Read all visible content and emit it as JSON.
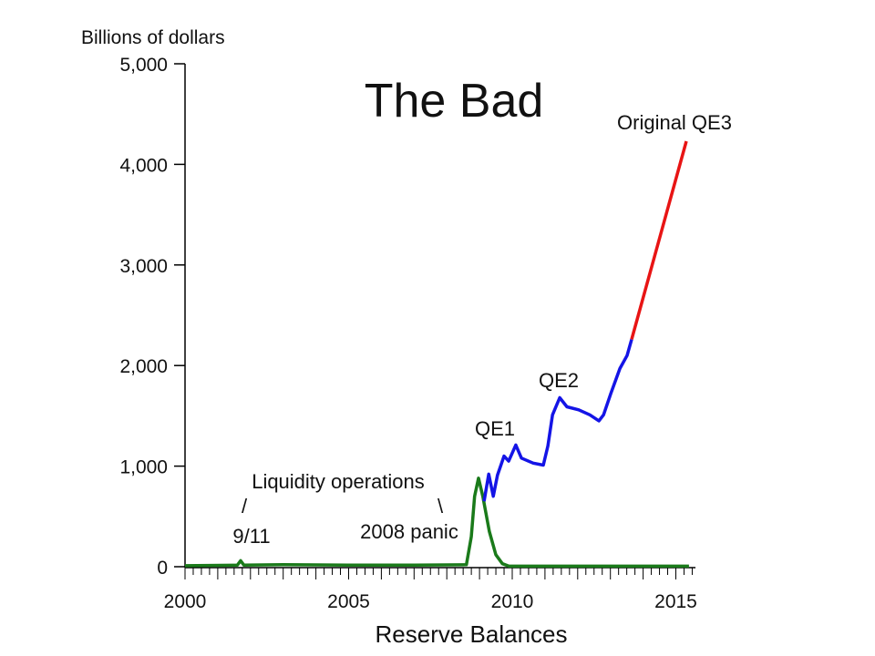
{
  "chart_data": {
    "type": "line",
    "title": "The Bad",
    "ylabel": "Billions of dollars",
    "xlabel": "Reserve Balances",
    "xlim": [
      2000,
      2015.6
    ],
    "ylim": [
      0,
      5000
    ],
    "x_ticks": [
      2000,
      2005,
      2010,
      2015
    ],
    "x_tick_labels": [
      "2000",
      "2005",
      "2010",
      "2015"
    ],
    "y_ticks": [
      0,
      1000,
      2000,
      3000,
      4000,
      5000
    ],
    "y_tick_labels": [
      "0",
      "1,000",
      "2,000",
      "3,000",
      "4,000",
      "5,000"
    ],
    "grid": false,
    "series": [
      {
        "name": "Liquidity operations",
        "color": "#1a7a1a",
        "x": [
          2000,
          2001.6,
          2001.7,
          2001.8,
          2003,
          2005,
          2007,
          2008.6,
          2008.75,
          2008.85,
          2008.97,
          2009.1,
          2009.3,
          2009.5,
          2009.7,
          2009.9,
          2015.4
        ],
        "y": [
          10,
          15,
          60,
          15,
          20,
          15,
          15,
          20,
          300,
          700,
          880,
          700,
          350,
          120,
          30,
          5,
          5
        ]
      },
      {
        "name": "Reserve balances",
        "color": "#1414e6",
        "x": [
          2009.14,
          2009.28,
          2009.42,
          2009.55,
          2009.75,
          2009.89,
          2010.11,
          2010.28,
          2010.64,
          2010.95,
          2011.09,
          2011.23,
          2011.45,
          2011.67,
          2012.03,
          2012.37,
          2012.65,
          2012.79,
          2013.01,
          2013.29,
          2013.51,
          2013.65
        ],
        "y": [
          650,
          920,
          700,
          910,
          1100,
          1050,
          1210,
          1080,
          1030,
          1010,
          1200,
          1510,
          1680,
          1590,
          1560,
          1510,
          1450,
          1510,
          1720,
          1970,
          2100,
          2260
        ]
      },
      {
        "name": "Original QE3",
        "color": "#e81414",
        "x": [
          2013.65,
          2015.32
        ],
        "y": [
          2260,
          4230
        ]
      }
    ],
    "annotations": [
      {
        "text": "QE1"
      },
      {
        "text": "QE2"
      },
      {
        "text": "Original QE3"
      },
      {
        "text": "Liquidity operations"
      },
      {
        "text": "/"
      },
      {
        "text": "\\"
      },
      {
        "text": "9/11"
      },
      {
        "text": "2008 panic"
      }
    ]
  }
}
